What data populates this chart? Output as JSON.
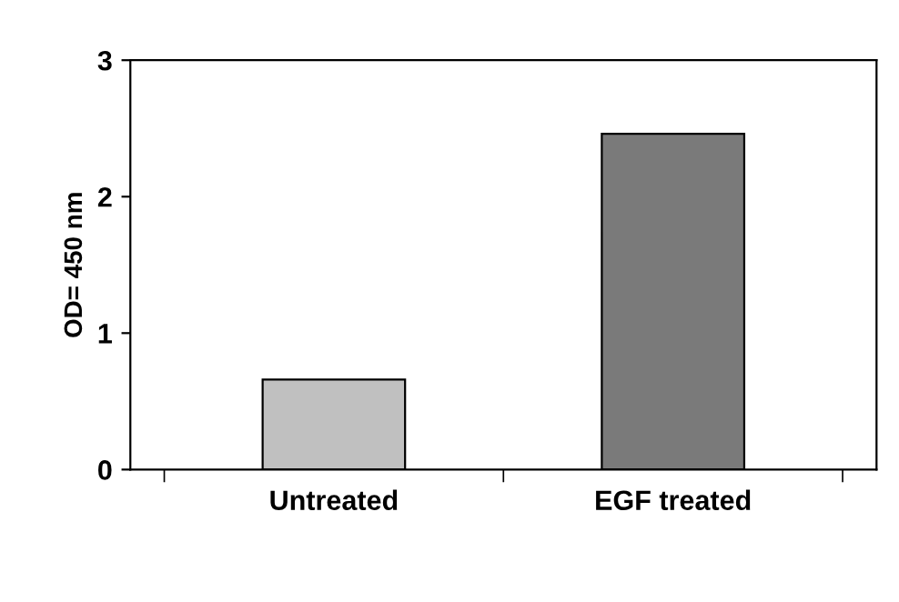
{
  "chart_data": {
    "type": "bar",
    "ylabel": "OD= 450 nm",
    "categories": [
      "Untreated",
      "EGF treated"
    ],
    "values": [
      0.66,
      2.46
    ],
    "colors": [
      "#c0c0c0",
      "#7a7a7a"
    ],
    "ylim": [
      0,
      3
    ],
    "yticks": [
      0,
      1,
      2,
      3
    ],
    "grid": false,
    "legend": false
  }
}
